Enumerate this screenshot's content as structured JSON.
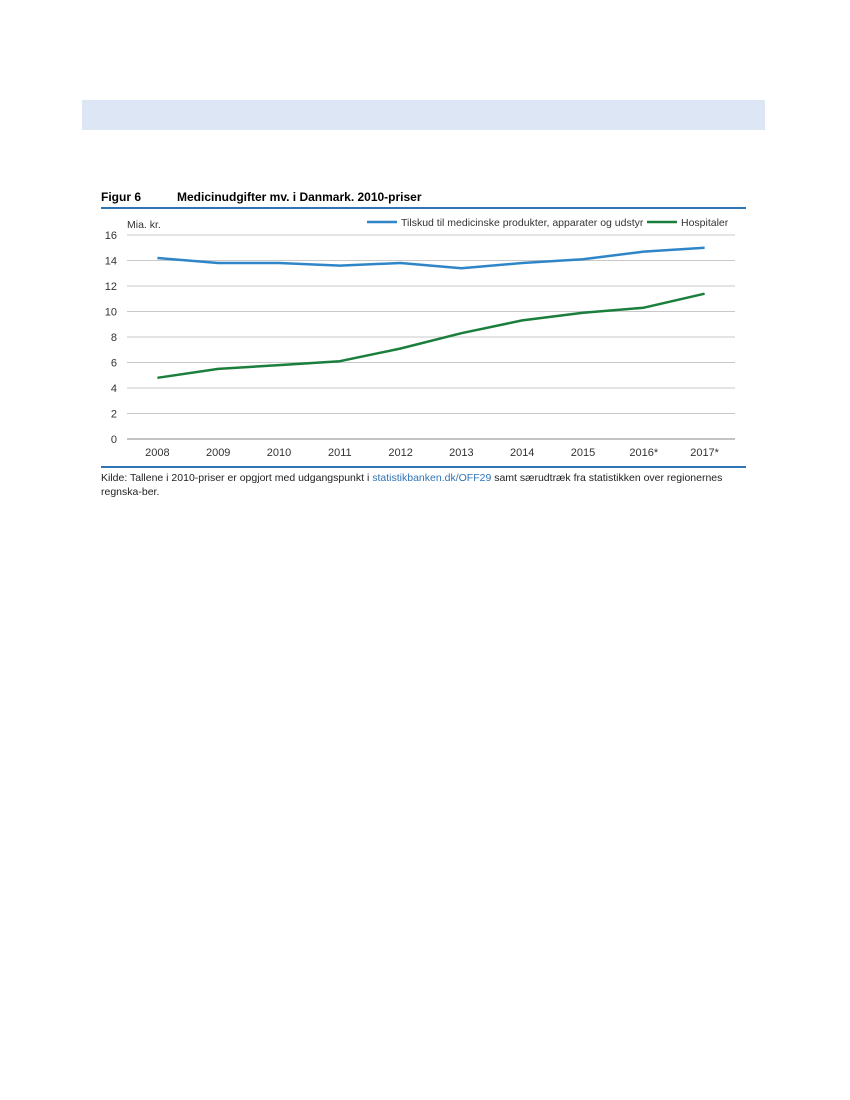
{
  "figure": {
    "label": "Figur 6",
    "title": "Medicinudgifter mv. i Danmark. 2010-priser"
  },
  "source": {
    "prefix": "Kilde: Tallene i 2010-priser er opgjort med udgangspunkt i ",
    "link": "statistikbanken.dk/OFF29",
    "suffix": " samt særudtræk fra statistikken over regionernes regnska-ber."
  },
  "colors": {
    "series_blue": "#2e86c8",
    "series_green": "#1a7f3c",
    "rule": "#2e75b6"
  },
  "chart_data": {
    "type": "line",
    "title": "Medicinudgifter mv. i Danmark. 2010-priser",
    "ylabel": "Mia. kr.",
    "xlabel": "",
    "categories": [
      "2008",
      "2009",
      "2010",
      "2011",
      "2012",
      "2013",
      "2014",
      "2015",
      "2016*",
      "2017*"
    ],
    "ylim": [
      0,
      16
    ],
    "yticks": [
      0,
      2,
      4,
      6,
      8,
      10,
      12,
      14,
      16
    ],
    "grid": true,
    "legend_position": "top-right",
    "series": [
      {
        "name": "Tilskud til medicinske produkter, apparater og udstyr",
        "color": "#2e86c8",
        "values": [
          14.2,
          13.8,
          13.8,
          13.6,
          13.8,
          13.4,
          13.8,
          14.1,
          14.7,
          15.0
        ]
      },
      {
        "name": "Hospitaler",
        "color": "#1a7f3c",
        "values": [
          4.8,
          5.5,
          5.8,
          6.1,
          7.1,
          8.3,
          9.3,
          9.9,
          10.3,
          11.4
        ]
      }
    ]
  }
}
